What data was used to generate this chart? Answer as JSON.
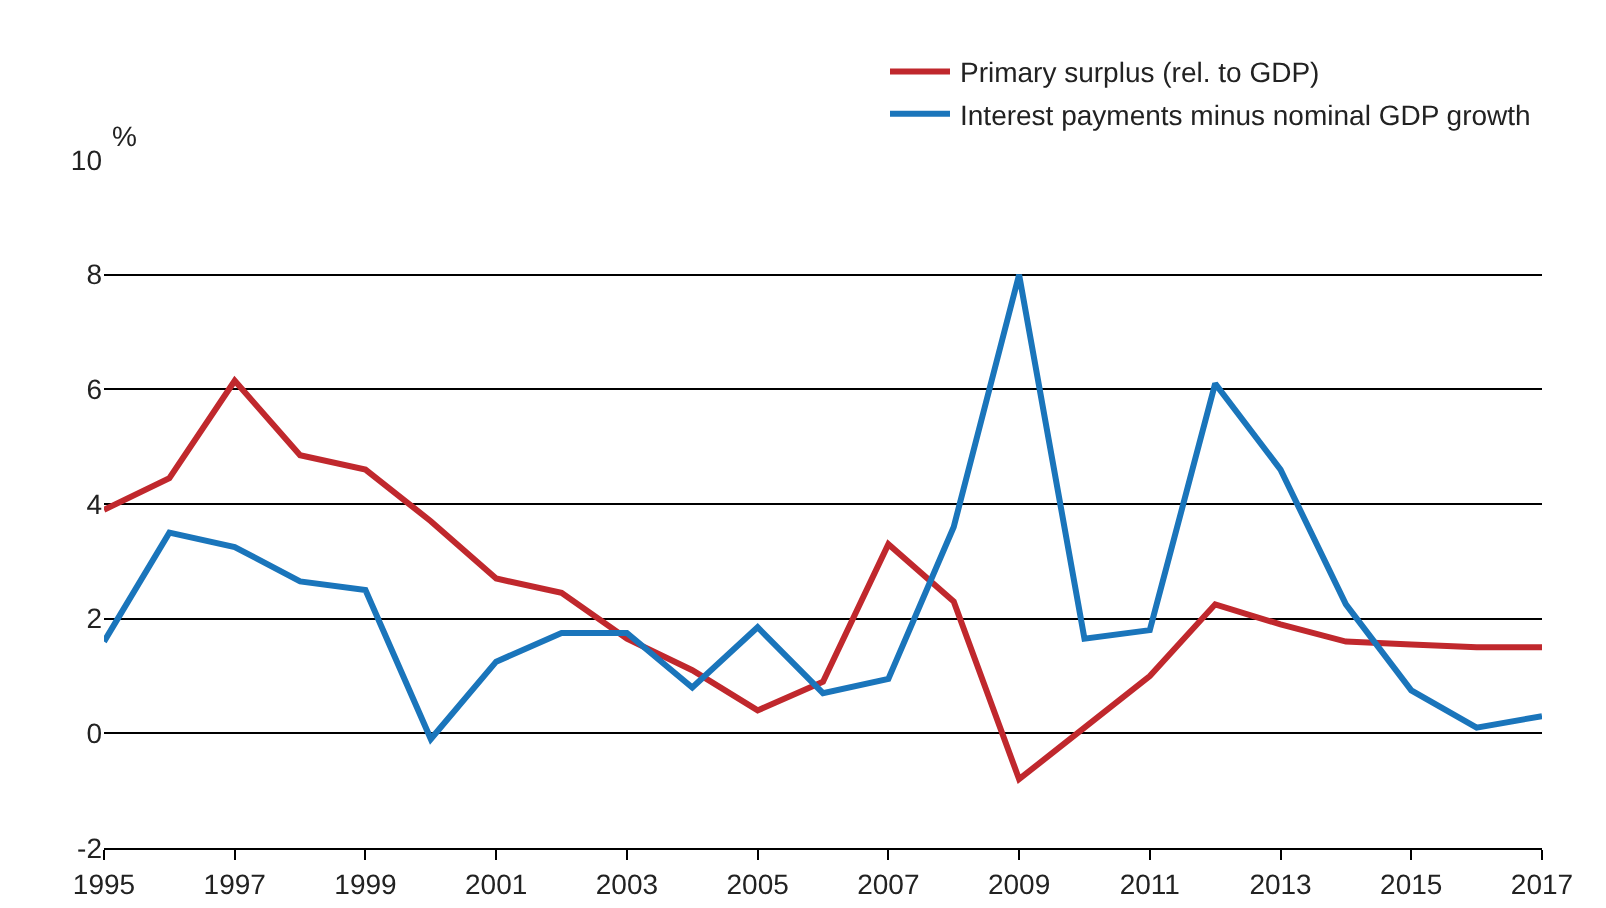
{
  "chart_data": {
    "type": "line",
    "ylabel": "%",
    "x": [
      1995,
      1996,
      1997,
      1998,
      1999,
      2000,
      2001,
      2002,
      2003,
      2004,
      2005,
      2006,
      2007,
      2008,
      2009,
      2010,
      2011,
      2012,
      2013,
      2014,
      2015,
      2016,
      2017
    ],
    "series": [
      {
        "name": "Primary surplus (rel. to GDP)",
        "color": "#c0282d",
        "values": [
          3.9,
          4.45,
          6.15,
          4.85,
          4.6,
          3.7,
          2.7,
          2.45,
          1.65,
          1.1,
          0.4,
          0.9,
          3.3,
          2.3,
          -0.8,
          0.1,
          1.0,
          2.25,
          1.9,
          1.6,
          1.55,
          1.5,
          1.5
        ]
      },
      {
        "name": "Interest payments minus nominal GDP growth",
        "color": "#1a75bb",
        "values": [
          1.6,
          3.5,
          3.25,
          2.65,
          2.5,
          -0.1,
          1.25,
          1.75,
          1.75,
          0.8,
          1.85,
          0.7,
          0.95,
          3.6,
          8.0,
          1.65,
          1.8,
          6.1,
          4.6,
          2.25,
          0.75,
          0.1,
          0.3
        ]
      }
    ],
    "xlim": [
      1995,
      2017
    ],
    "xticks": [
      1995,
      1997,
      1999,
      2001,
      2003,
      2005,
      2007,
      2009,
      2011,
      2013,
      2015,
      2017
    ],
    "ylim": [
      -2,
      10
    ],
    "yticks": [
      -2,
      0,
      2,
      4,
      6,
      8,
      10
    ],
    "grid": "y",
    "legend": "top right",
    "marker": "none",
    "line_style": "solid"
  }
}
